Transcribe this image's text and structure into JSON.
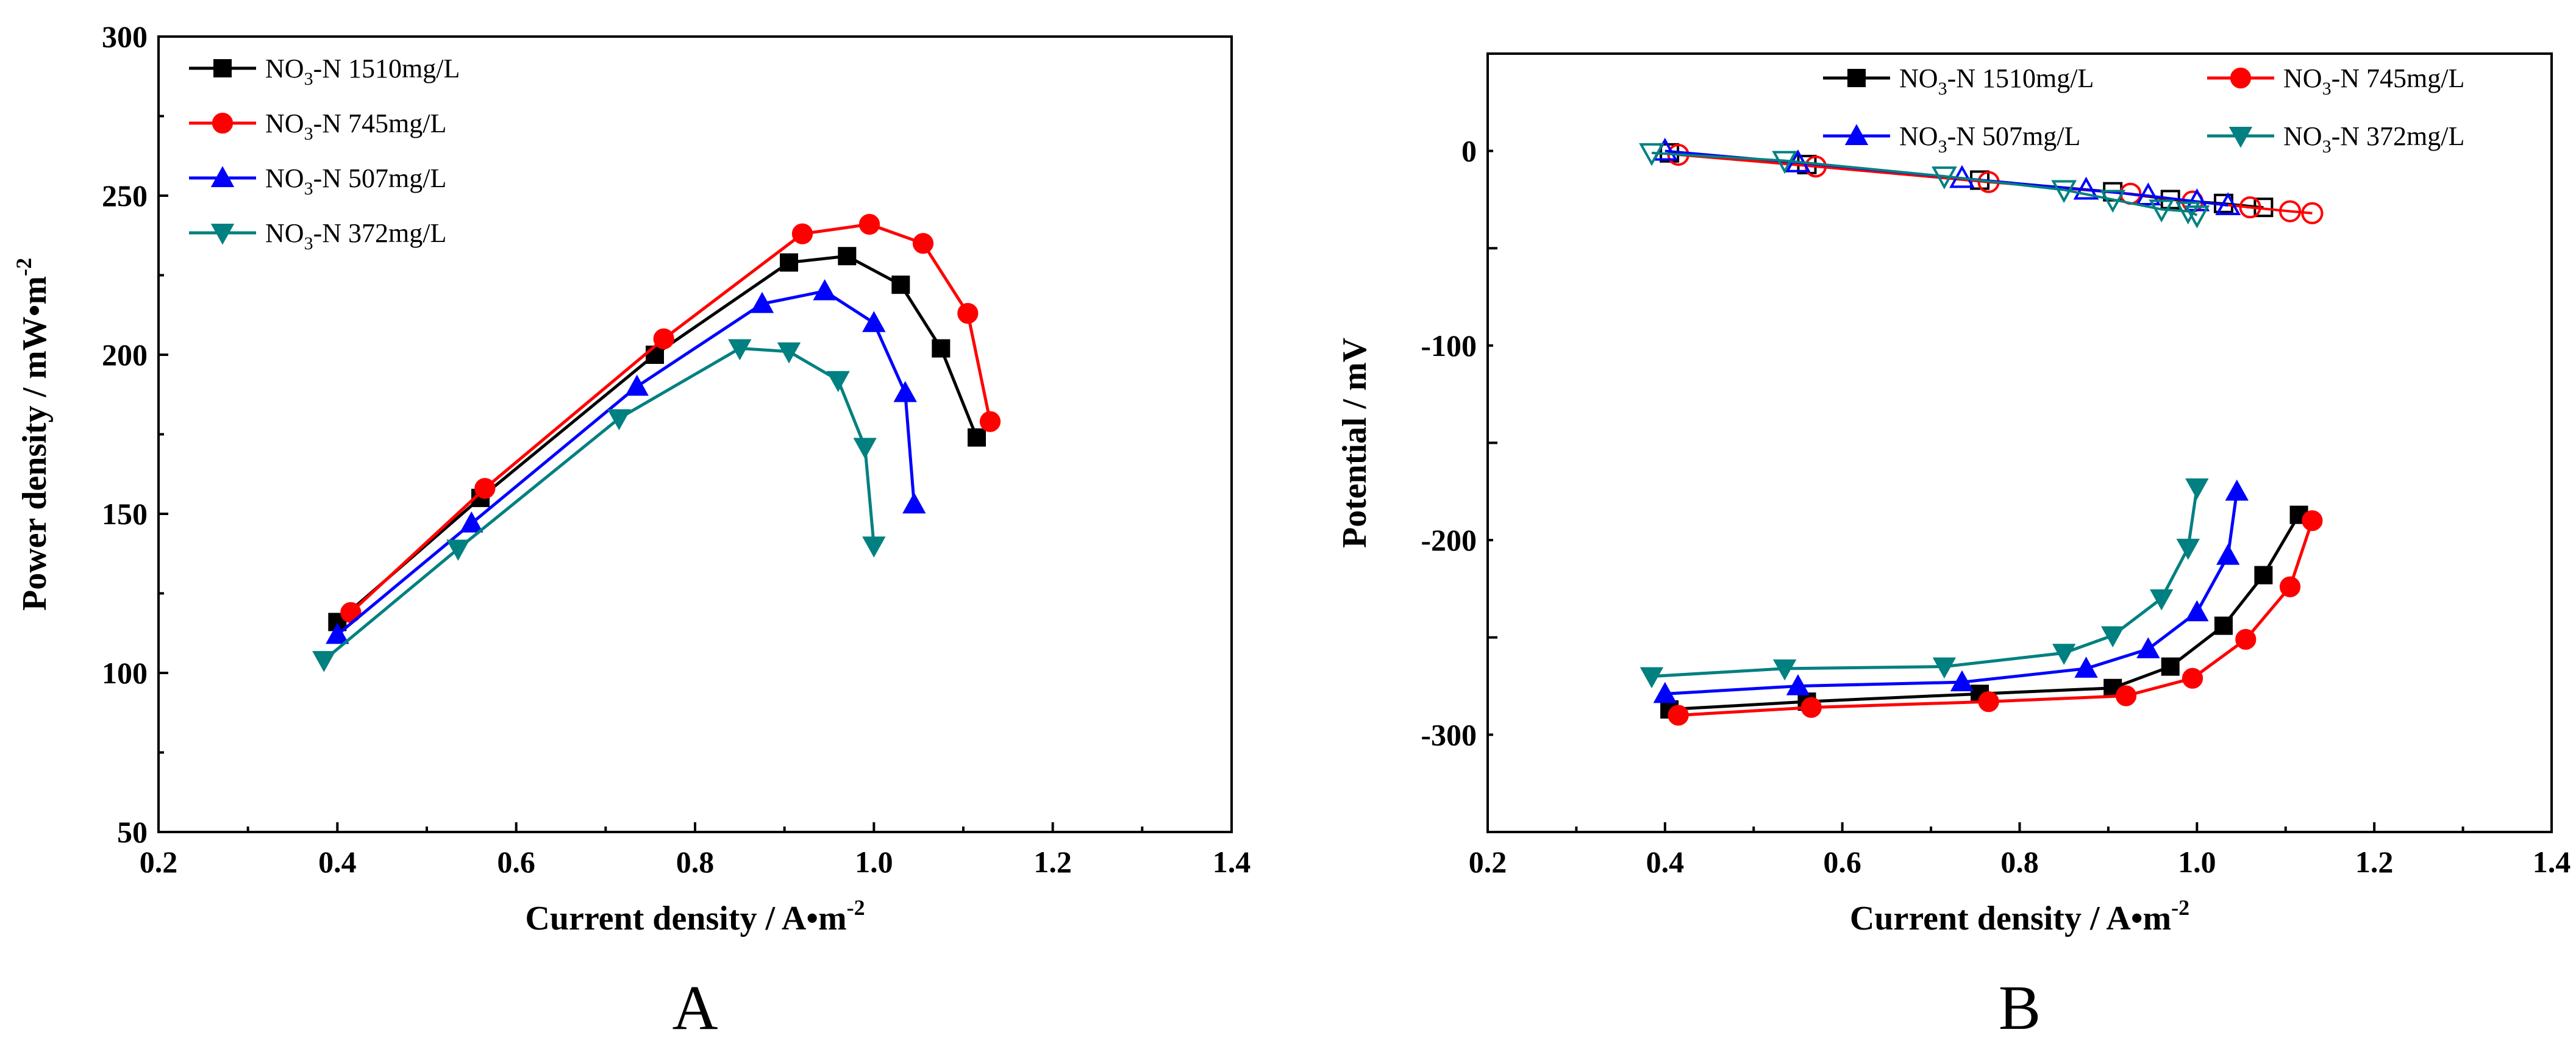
{
  "chart_data": [
    {
      "type": "line",
      "panel_label": "A",
      "xlabel": "Current density / A•m",
      "xlabel_sup": "-2",
      "ylabel": "Power density / mW•m",
      "ylabel_sup": "-2",
      "xlim": [
        0.2,
        1.4
      ],
      "ylim": [
        50,
        300
      ],
      "xticks": [
        "0.2",
        "0.4",
        "0.6",
        "0.8",
        "1.0",
        "1.2",
        "1.4"
      ],
      "yticks": [
        "50",
        "100",
        "150",
        "200",
        "250",
        "300"
      ],
      "legend_position": "top-left",
      "series": [
        {
          "name": "NO3-N 1510mg/L",
          "legend_pre": "NO",
          "legend_sub": "3",
          "legend_post": "-N  1510mg/L",
          "color": "#000000",
          "marker": "square",
          "x": [
            0.4,
            0.56,
            0.755,
            0.905,
            0.97,
            1.03,
            1.075,
            1.115
          ],
          "y": [
            116,
            155,
            200,
            229,
            231,
            222,
            202,
            174
          ]
        },
        {
          "name": "NO3-N 745mg/L",
          "legend_pre": "NO",
          "legend_sub": "3",
          "legend_post": "-N  745mg/L",
          "color": "#ff0000",
          "marker": "circle",
          "x": [
            0.415,
            0.565,
            0.765,
            0.92,
            0.995,
            1.055,
            1.105,
            1.13
          ],
          "y": [
            119,
            158,
            205,
            238,
            241,
            235,
            213,
            179
          ]
        },
        {
          "name": "NO3-N 507mg/L",
          "legend_pre": "NO",
          "legend_sub": "3",
          "legend_post": "-N  507mg/L",
          "color": "#0000ff",
          "marker": "triangle-up",
          "x": [
            0.4,
            0.55,
            0.735,
            0.875,
            0.945,
            1.0,
            1.035,
            1.045
          ],
          "y": [
            112,
            147,
            190,
            216,
            220,
            210,
            188,
            153
          ]
        },
        {
          "name": "NO3-N 372mg/L",
          "legend_pre": "NO",
          "legend_sub": "3",
          "legend_post": "-N  372mg/L",
          "color": "#008080",
          "marker": "triangle-down",
          "x": [
            0.385,
            0.535,
            0.715,
            0.85,
            0.905,
            0.96,
            0.99,
            1.0
          ],
          "y": [
            104,
            139,
            180,
            202,
            201,
            192,
            171,
            140
          ]
        }
      ]
    },
    {
      "type": "line",
      "panel_label": "B",
      "xlabel": "Current density / A•m",
      "xlabel_sup": "-2",
      "ylabel": "Potential / mV",
      "xlim": [
        0.2,
        1.4
      ],
      "ylim": [
        -350,
        50
      ],
      "xticks": [
        "0.2",
        "0.4",
        "0.6",
        "0.8",
        "1.0",
        "1.2",
        "1.4"
      ],
      "yticks": [
        "-300",
        "-200",
        "-100",
        "0"
      ],
      "legend_position": "top-right",
      "series": [
        {
          "name": "NO3-N 1510mg/L",
          "legend_pre": "NO",
          "legend_sub": "3",
          "legend_post": "-N  1510mg/L",
          "color": "#000000",
          "marker": "square",
          "x": [
            0.405,
            0.56,
            0.755,
            0.905,
            0.97,
            1.03,
            1.075,
            1.115
          ],
          "y": [
            -287,
            -283,
            -279,
            -276,
            -265,
            -244,
            -218,
            -187
          ],
          "x_open": [
            0.405,
            0.56,
            0.755,
            0.905,
            0.97,
            1.03,
            1.075
          ],
          "y_open": [
            -1,
            -7,
            -15,
            -21,
            -25,
            -27,
            -29
          ]
        },
        {
          "name": "NO3-N 745mg/L",
          "legend_pre": "NO",
          "legend_sub": "3",
          "legend_post": "-N  745mg/L",
          "color": "#ff0000",
          "marker": "circle",
          "x": [
            0.415,
            0.565,
            0.765,
            0.92,
            0.995,
            1.055,
            1.105,
            1.13
          ],
          "y": [
            -290,
            -286,
            -283,
            -280,
            -271,
            -251,
            -224,
            -190
          ],
          "x_open": [
            0.415,
            0.57,
            0.765,
            0.925,
            0.995,
            1.06,
            1.105,
            1.13
          ],
          "y_open": [
            -2,
            -8,
            -16,
            -22,
            -26,
            -29,
            -31,
            -32
          ]
        },
        {
          "name": "NO3-N 507mg/L",
          "legend_pre": "NO",
          "legend_sub": "3",
          "legend_post": "-N  507mg/L",
          "color": "#0000ff",
          "marker": "triangle-up",
          "x": [
            0.4,
            0.55,
            0.735,
            0.875,
            0.945,
            1.0,
            1.035,
            1.045
          ],
          "y": [
            -279,
            -275,
            -273,
            -266,
            -256,
            -237,
            -208,
            -175
          ],
          "x_open": [
            0.4,
            0.55,
            0.735,
            0.875,
            0.945,
            1.0,
            1.035
          ],
          "y_open": [
            0,
            -6,
            -14,
            -20,
            -23,
            -26,
            -28
          ]
        },
        {
          "name": "NO3-N 372mg/L",
          "legend_pre": "NO",
          "legend_sub": "3",
          "legend_post": "-N  372mg/L",
          "color": "#008080",
          "marker": "triangle-down",
          "x": [
            0.385,
            0.535,
            0.715,
            0.85,
            0.905,
            0.96,
            0.99,
            1.0
          ],
          "y": [
            -270,
            -266,
            -265,
            -258,
            -249,
            -230,
            -204,
            -173
          ],
          "x_open": [
            0.385,
            0.535,
            0.715,
            0.85,
            0.905,
            0.96,
            0.99,
            1.0
          ],
          "y_open": [
            -1,
            -5,
            -13,
            -20,
            -25,
            -30,
            -31,
            -33
          ]
        }
      ]
    }
  ]
}
